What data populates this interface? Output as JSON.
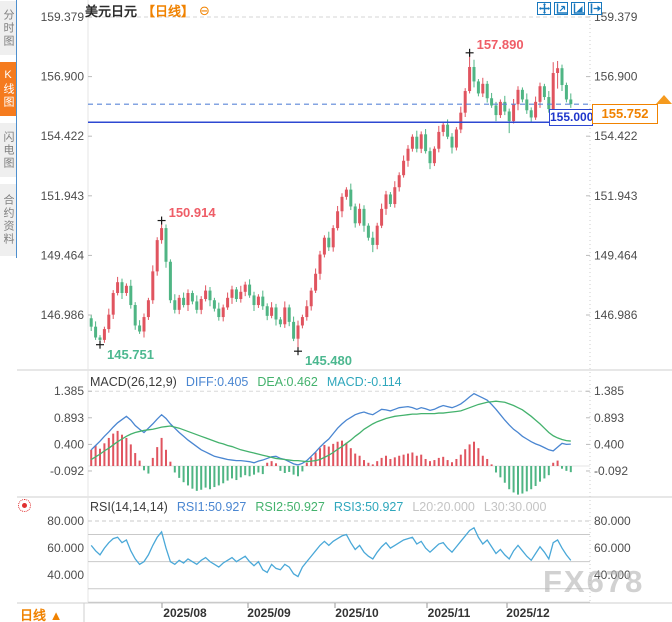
{
  "sidebar": {
    "items": [
      {
        "label": "分时图",
        "active": false
      },
      {
        "label": "K线图",
        "active": true
      },
      {
        "label": "闪电图",
        "active": false
      },
      {
        "label": "合约资料",
        "active": false
      }
    ]
  },
  "header": {
    "symbol": "美元日元",
    "period": "【日线】",
    "settings_icon": "⊖"
  },
  "toolbar": {
    "icons": [
      "pan",
      "zoom-in",
      "zoom-out",
      "reset-view"
    ]
  },
  "footer": {
    "period_label": "日线 ▲"
  },
  "watermark": "FX678",
  "colors": {
    "up_candle": "#e0545f",
    "down_candle": "#4fb584",
    "accent_orange": "#f57b1e",
    "hline_blue": "#2d48d2",
    "last_price_dash_blue": "#5b86d8",
    "diff_line": "#4a86d1",
    "dea_line": "#44b26d",
    "macd_value_teal": "#2fa7bc",
    "rsi_line": "#4aa8d8",
    "annotation_red": "#ef5d67",
    "annotation_green": "#4db890"
  },
  "chart_data": {
    "type": "candlestick",
    "symbol": "美元日元",
    "period": "日线",
    "y_axis_ticks": [
      "159.379",
      "156.900",
      "154.422",
      "151.943",
      "149.464",
      "146.986"
    ],
    "x_axis_labels": [
      "2025/08",
      "2025/09",
      "2025/10",
      "2025/11",
      "2025/12"
    ],
    "current_price": {
      "label": "155.752",
      "value": 155.752
    },
    "horizontal_line": {
      "label": "155.000",
      "value": 155.0
    },
    "annotations": [
      {
        "text": "157.890",
        "value": 157.89,
        "candle_index": 86,
        "kind": "high"
      },
      {
        "text": "150.914",
        "value": 150.914,
        "candle_index": 16,
        "kind": "high"
      },
      {
        "text": "145.751",
        "value": 145.751,
        "candle_index": 2,
        "kind": "low"
      },
      {
        "text": "145.480",
        "value": 145.48,
        "candle_index": 47,
        "kind": "low"
      }
    ],
    "ohlc": [
      [
        146.85,
        146.97,
        146.32,
        146.5
      ],
      [
        146.5,
        146.72,
        145.95,
        146.05
      ],
      [
        146.05,
        146.15,
        145.751,
        145.95
      ],
      [
        145.95,
        146.5,
        145.83,
        146.4
      ],
      [
        146.4,
        147.25,
        146.25,
        147.0
      ],
      [
        147.0,
        148.02,
        146.82,
        147.9
      ],
      [
        147.9,
        148.57,
        147.8,
        148.35
      ],
      [
        148.35,
        148.5,
        147.65,
        147.9
      ],
      [
        147.9,
        148.3,
        147.78,
        148.2
      ],
      [
        148.2,
        148.45,
        147.25,
        147.4
      ],
      [
        147.4,
        147.52,
        146.37,
        146.55
      ],
      [
        146.55,
        146.77,
        146.2,
        146.3
      ],
      [
        146.3,
        147.05,
        146.05,
        146.9
      ],
      [
        146.9,
        147.7,
        146.78,
        147.6
      ],
      [
        147.6,
        149.05,
        147.45,
        148.8
      ],
      [
        148.8,
        150.22,
        148.62,
        150.1
      ],
      [
        150.1,
        150.914,
        149.95,
        150.6
      ],
      [
        150.6,
        150.75,
        148.95,
        149.2
      ],
      [
        149.2,
        149.3,
        147.48,
        147.6
      ],
      [
        147.6,
        147.85,
        147.05,
        147.2
      ],
      [
        147.2,
        147.82,
        147.02,
        147.7
      ],
      [
        147.7,
        147.92,
        147.3,
        147.4
      ],
      [
        147.4,
        148.05,
        147.15,
        147.9
      ],
      [
        147.9,
        148.0,
        147.43,
        147.55
      ],
      [
        147.55,
        147.8,
        147.05,
        147.2
      ],
      [
        147.2,
        147.77,
        147.02,
        147.65
      ],
      [
        147.65,
        148.22,
        147.55,
        148.0
      ],
      [
        148.0,
        148.15,
        147.35,
        147.6
      ],
      [
        147.6,
        147.7,
        147.13,
        147.25
      ],
      [
        147.25,
        147.5,
        146.75,
        146.9
      ],
      [
        146.9,
        147.42,
        146.72,
        147.3
      ],
      [
        147.3,
        147.92,
        147.2,
        147.7
      ],
      [
        147.7,
        148.2,
        147.45,
        148.05
      ],
      [
        148.05,
        148.15,
        147.53,
        147.65
      ],
      [
        147.65,
        148.2,
        147.5,
        147.95
      ],
      [
        147.95,
        148.37,
        147.77,
        148.25
      ],
      [
        148.25,
        148.47,
        147.7,
        147.8
      ],
      [
        147.8,
        147.95,
        147.15,
        147.4
      ],
      [
        147.4,
        147.85,
        147.28,
        147.75
      ],
      [
        147.75,
        148.0,
        147.2,
        147.35
      ],
      [
        147.35,
        147.47,
        146.77,
        146.95
      ],
      [
        146.95,
        147.52,
        146.85,
        147.3
      ],
      [
        147.3,
        147.45,
        146.55,
        146.8
      ],
      [
        146.8,
        146.9,
        146.48,
        146.6
      ],
      [
        146.6,
        147.55,
        146.45,
        147.3
      ],
      [
        147.3,
        147.42,
        146.52,
        146.7
      ],
      [
        146.7,
        146.92,
        145.9,
        146.0
      ],
      [
        146.0,
        146.75,
        145.48,
        146.55
      ],
      [
        146.55,
        147.0,
        146.43,
        146.9
      ],
      [
        146.9,
        147.6,
        146.75,
        147.35
      ],
      [
        147.35,
        148.12,
        147.17,
        148.0
      ],
      [
        148.0,
        148.92,
        147.9,
        148.7
      ],
      [
        148.7,
        149.65,
        148.45,
        149.5
      ],
      [
        149.5,
        150.3,
        149.38,
        150.2
      ],
      [
        150.2,
        150.45,
        149.65,
        149.8
      ],
      [
        149.8,
        150.72,
        149.62,
        150.6
      ],
      [
        150.6,
        151.52,
        150.5,
        151.3
      ],
      [
        151.3,
        152.05,
        151.05,
        151.9
      ],
      [
        151.9,
        152.3,
        151.78,
        152.2
      ],
      [
        152.2,
        152.45,
        151.35,
        151.5
      ],
      [
        151.5,
        151.62,
        150.62,
        150.8
      ],
      [
        150.8,
        151.62,
        150.7,
        151.4
      ],
      [
        151.4,
        151.55,
        150.45,
        150.7
      ],
      [
        150.7,
        150.8,
        150.08,
        150.2
      ],
      [
        150.2,
        150.45,
        149.6,
        149.9
      ],
      [
        149.9,
        150.82,
        149.72,
        150.7
      ],
      [
        150.7,
        151.62,
        150.6,
        151.4
      ],
      [
        151.4,
        152.15,
        151.15,
        152.0
      ],
      [
        152.0,
        152.1,
        151.48,
        151.6
      ],
      [
        151.6,
        152.55,
        151.45,
        152.3
      ],
      [
        152.3,
        152.92,
        152.12,
        152.8
      ],
      [
        152.8,
        153.62,
        152.7,
        153.4
      ],
      [
        153.4,
        154.05,
        153.15,
        153.9
      ],
      [
        153.9,
        154.5,
        153.78,
        154.4
      ],
      [
        154.4,
        154.65,
        153.75,
        153.9
      ],
      [
        153.9,
        154.62,
        153.72,
        154.5
      ],
      [
        154.5,
        154.72,
        153.7,
        153.8
      ],
      [
        153.8,
        153.95,
        153.05,
        153.3
      ],
      [
        153.3,
        154.0,
        153.18,
        153.9
      ],
      [
        153.9,
        154.85,
        153.75,
        154.6
      ],
      [
        154.6,
        155.02,
        154.42,
        154.9
      ],
      [
        154.9,
        155.12,
        154.3,
        154.4
      ],
      [
        154.4,
        154.55,
        153.7,
        153.95
      ],
      [
        153.95,
        154.8,
        153.83,
        154.7
      ],
      [
        154.7,
        155.65,
        154.55,
        155.4
      ],
      [
        155.4,
        156.42,
        155.22,
        156.3
      ],
      [
        156.3,
        157.89,
        156.2,
        157.3
      ],
      [
        157.3,
        157.6,
        156.45,
        156.7
      ],
      [
        156.7,
        156.8,
        156.08,
        156.2
      ],
      [
        156.2,
        156.85,
        156.05,
        156.6
      ],
      [
        156.6,
        156.72,
        155.82,
        156.0
      ],
      [
        156.0,
        156.22,
        155.6,
        155.7
      ],
      [
        155.7,
        155.85,
        155.05,
        155.3
      ],
      [
        155.3,
        155.95,
        155.18,
        155.85
      ],
      [
        155.85,
        156.1,
        155.3,
        155.45
      ],
      [
        155.45,
        155.57,
        154.55,
        155.05
      ],
      [
        155.05,
        155.97,
        154.95,
        155.75
      ],
      [
        155.75,
        156.5,
        155.5,
        156.35
      ],
      [
        156.35,
        156.45,
        155.83,
        155.95
      ],
      [
        155.95,
        156.2,
        155.35,
        155.5
      ],
      [
        155.5,
        155.62,
        155.02,
        155.2
      ],
      [
        155.2,
        156.07,
        155.1,
        155.85
      ],
      [
        155.85,
        156.65,
        155.6,
        156.5
      ],
      [
        156.5,
        156.6,
        155.93,
        156.05
      ],
      [
        156.05,
        156.3,
        155.4,
        155.55
      ],
      [
        155.55,
        157.5,
        155.45,
        157.05
      ],
      [
        157.05,
        157.55,
        156.4,
        157.25
      ],
      [
        157.25,
        157.4,
        156.3,
        156.55
      ],
      [
        156.55,
        156.65,
        155.83,
        155.95
      ],
      [
        155.95,
        156.2,
        155.6,
        155.752
      ]
    ],
    "macd": {
      "title": "MACD(26,12,9)",
      "diff_label": "DIFF:0.405",
      "dea_label": "DEA:0.462",
      "macd_label": "MACD:-0.114",
      "y_ticks": [
        "1.385",
        "0.893",
        "0.400",
        "-0.092"
      ],
      "diff": [
        0.3,
        0.38,
        0.46,
        0.55,
        0.63,
        0.72,
        0.8,
        0.86,
        0.92,
        0.85,
        0.75,
        0.68,
        0.62,
        0.7,
        0.78,
        0.87,
        0.95,
        0.88,
        0.78,
        0.7,
        0.62,
        0.55,
        0.48,
        0.42,
        0.36,
        0.3,
        0.26,
        0.22,
        0.18,
        0.16,
        0.14,
        0.12,
        0.11,
        0.1,
        0.1,
        0.09,
        0.08,
        0.06,
        0.09,
        0.11,
        0.14,
        0.17,
        0.18,
        0.14,
        0.12,
        0.08,
        0.04,
        0.02,
        0.05,
        0.1,
        0.18,
        0.26,
        0.35,
        0.43,
        0.5,
        0.6,
        0.7,
        0.78,
        0.85,
        0.9,
        0.95,
        0.98,
        1.0,
        0.97,
        0.95,
        1.0,
        1.05,
        1.04,
        1.02,
        1.05,
        1.08,
        1.09,
        1.1,
        1.08,
        1.05,
        1.08,
        1.06,
        1.03,
        1.05,
        1.09,
        1.12,
        1.1,
        1.08,
        1.11,
        1.15,
        1.21,
        1.28,
        1.34,
        1.3,
        1.26,
        1.22,
        1.14,
        1.05,
        0.95,
        0.85,
        0.76,
        0.68,
        0.62,
        0.55,
        0.5,
        0.45,
        0.41,
        0.38,
        0.34,
        0.3,
        0.28,
        0.35,
        0.42,
        0.4,
        0.405
      ],
      "dea": [
        0.12,
        0.17,
        0.22,
        0.28,
        0.33,
        0.39,
        0.45,
        0.5,
        0.55,
        0.59,
        0.62,
        0.64,
        0.66,
        0.67,
        0.68,
        0.7,
        0.72,
        0.73,
        0.74,
        0.72,
        0.7,
        0.67,
        0.64,
        0.61,
        0.58,
        0.55,
        0.52,
        0.49,
        0.46,
        0.43,
        0.41,
        0.38,
        0.36,
        0.33,
        0.3,
        0.28,
        0.26,
        0.24,
        0.22,
        0.2,
        0.18,
        0.16,
        0.14,
        0.13,
        0.12,
        0.11,
        0.1,
        0.1,
        0.09,
        0.08,
        0.09,
        0.1,
        0.12,
        0.16,
        0.2,
        0.25,
        0.31,
        0.36,
        0.42,
        0.48,
        0.55,
        0.61,
        0.68,
        0.73,
        0.78,
        0.82,
        0.85,
        0.88,
        0.9,
        0.92,
        0.93,
        0.94,
        0.95,
        0.96,
        0.96,
        0.97,
        0.97,
        0.97,
        0.97,
        0.98,
        0.98,
        0.99,
        1.0,
        1.01,
        1.02,
        1.05,
        1.08,
        1.11,
        1.14,
        1.16,
        1.18,
        1.19,
        1.2,
        1.19,
        1.18,
        1.15,
        1.12,
        1.08,
        1.04,
        0.98,
        0.92,
        0.85,
        0.78,
        0.7,
        0.62,
        0.56,
        0.52,
        0.49,
        0.47,
        0.462
      ],
      "hist": [
        0.3,
        0.38,
        0.32,
        0.42,
        0.52,
        0.6,
        0.65,
        0.58,
        0.52,
        0.4,
        0.24,
        0.1,
        -0.08,
        -0.14,
        0.15,
        0.35,
        0.52,
        0.3,
        0.08,
        -0.12,
        -0.22,
        -0.3,
        -0.36,
        -0.42,
        -0.46,
        -0.44,
        -0.4,
        -0.43,
        -0.39,
        -0.36,
        -0.32,
        -0.27,
        -0.23,
        -0.26,
        -0.21,
        -0.17,
        -0.19,
        -0.16,
        -0.12,
        -0.15,
        0.06,
        0.09,
        0.05,
        -0.09,
        -0.13,
        -0.11,
        -0.16,
        -0.19,
        -0.1,
        0.06,
        0.16,
        0.25,
        0.33,
        0.39,
        0.36,
        0.41,
        0.45,
        0.47,
        0.43,
        0.33,
        0.23,
        0.19,
        0.11,
        0.06,
        0.03,
        0.09,
        0.15,
        0.19,
        0.13,
        0.16,
        0.19,
        0.21,
        0.23,
        0.25,
        0.19,
        0.21,
        0.13,
        0.09,
        0.11,
        0.15,
        0.17,
        0.11,
        0.07,
        0.13,
        0.21,
        0.31,
        0.4,
        0.45,
        0.33,
        0.19,
        0.13,
        0.03,
        -0.12,
        -0.21,
        -0.31,
        -0.43,
        -0.49,
        -0.53,
        -0.51,
        -0.47,
        -0.43,
        -0.37,
        -0.29,
        -0.23,
        -0.17,
        0.06,
        0.1,
        -0.05,
        -0.09,
        -0.114
      ]
    },
    "rsi": {
      "title": "RSI(14,14,14)",
      "rsi1_label": "RSI1:50.927",
      "rsi2_label": "RSI2:50.927",
      "rsi3_label": "RSI3:50.927",
      "l20_label": "L20:20.000",
      "l30_label": "L30:30.000",
      "y_ticks": [
        "80.000",
        "60.000",
        "40.000"
      ],
      "gridlines": [
        80,
        70,
        50,
        30,
        20
      ],
      "series": [
        62,
        58,
        55,
        60,
        64,
        67,
        68,
        64,
        66,
        58,
        52,
        48,
        50,
        55,
        62,
        68,
        72,
        60,
        50,
        48,
        51,
        49,
        52,
        50,
        48,
        51,
        53,
        50,
        48,
        46,
        49,
        51,
        53,
        50,
        52,
        54,
        50,
        47,
        50,
        44,
        42,
        48,
        45,
        44,
        48,
        46,
        41,
        39,
        46,
        50,
        54,
        58,
        62,
        65,
        62,
        65,
        67,
        69,
        70,
        64,
        59,
        62,
        57,
        54,
        52,
        57,
        61,
        64,
        60,
        62,
        64,
        66,
        67,
        68,
        63,
        65,
        60,
        57,
        60,
        63,
        64,
        60,
        57,
        61,
        65,
        69,
        73,
        75,
        68,
        63,
        66,
        61,
        56,
        59,
        55,
        52,
        58,
        62,
        58,
        54,
        51,
        56,
        61,
        57,
        52,
        64,
        66,
        60,
        55,
        50.927
      ]
    }
  }
}
